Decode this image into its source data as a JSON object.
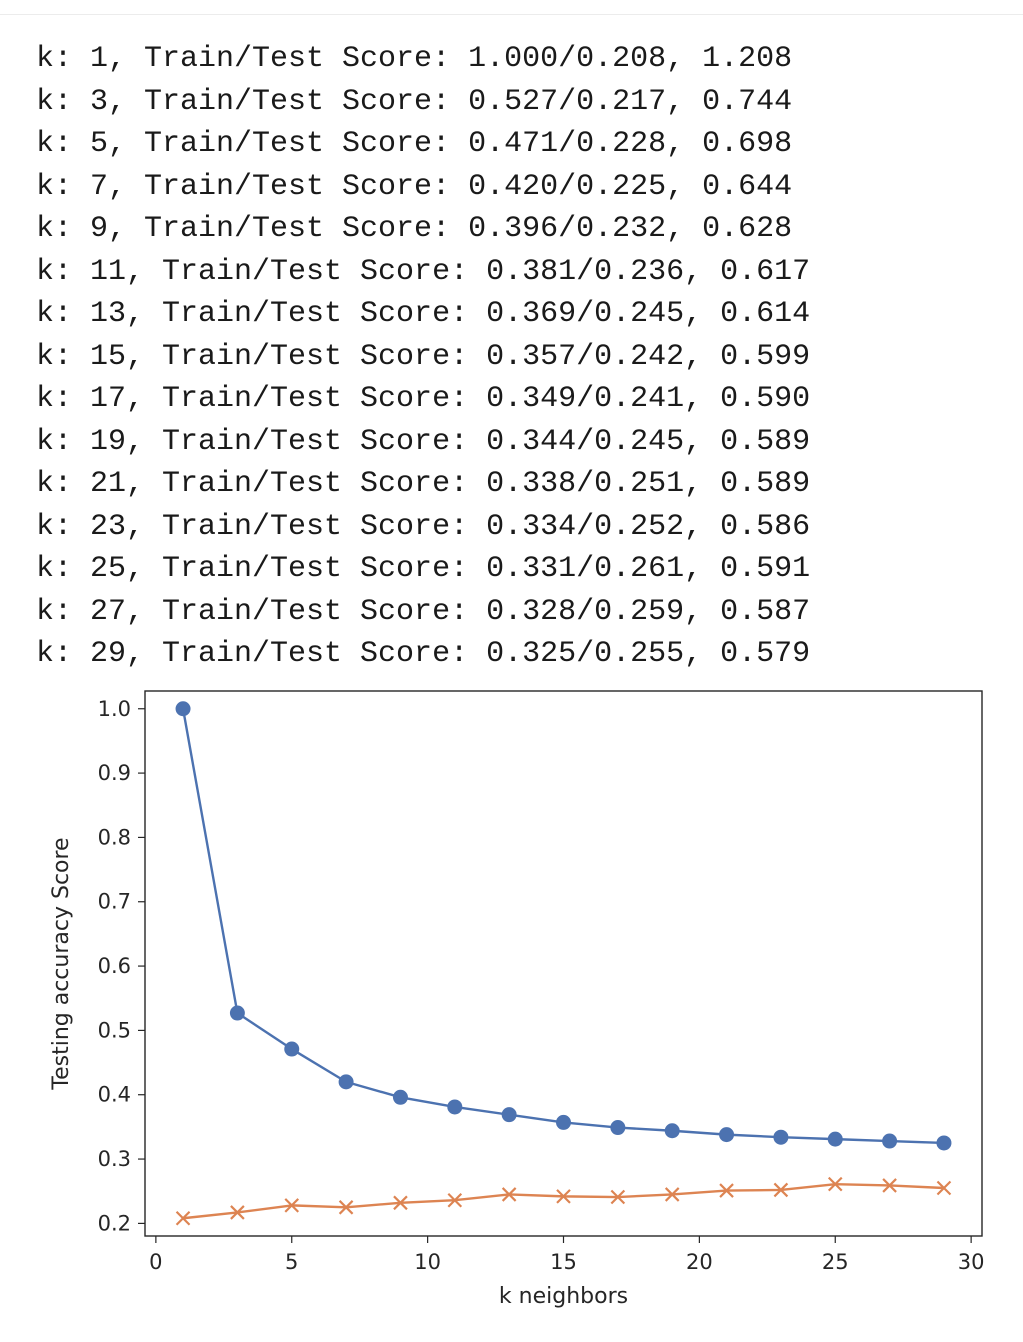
{
  "output_lines": [
    "k: 1, Train/Test Score: 1.000/0.208, 1.208",
    "k: 3, Train/Test Score: 0.527/0.217, 0.744",
    "k: 5, Train/Test Score: 0.471/0.228, 0.698",
    "k: 7, Train/Test Score: 0.420/0.225, 0.644",
    "k: 9, Train/Test Score: 0.396/0.232, 0.628",
    "k: 11, Train/Test Score: 0.381/0.236, 0.617",
    "k: 13, Train/Test Score: 0.369/0.245, 0.614",
    "k: 15, Train/Test Score: 0.357/0.242, 0.599",
    "k: 17, Train/Test Score: 0.349/0.241, 0.590",
    "k: 19, Train/Test Score: 0.344/0.245, 0.589",
    "k: 21, Train/Test Score: 0.338/0.251, 0.589",
    "k: 23, Train/Test Score: 0.334/0.252, 0.586",
    "k: 25, Train/Test Score: 0.331/0.261, 0.591",
    "k: 27, Train/Test Score: 0.328/0.259, 0.587",
    "k: 29, Train/Test Score: 0.325/0.255, 0.579"
  ],
  "chart_data": {
    "type": "line",
    "title": "",
    "xlabel": "k neighbors",
    "ylabel": "Testing accuracy Score",
    "x": [
      1,
      3,
      5,
      7,
      9,
      11,
      13,
      15,
      17,
      19,
      21,
      23,
      25,
      27,
      29
    ],
    "series": [
      {
        "color": "#4c72b0",
        "marker": "circle",
        "values": [
          1.0,
          0.527,
          0.471,
          0.42,
          0.396,
          0.381,
          0.369,
          0.357,
          0.349,
          0.344,
          0.338,
          0.334,
          0.331,
          0.328,
          0.325
        ]
      },
      {
        "color": "#dd8452",
        "marker": "x",
        "values": [
          0.208,
          0.217,
          0.228,
          0.225,
          0.232,
          0.236,
          0.245,
          0.242,
          0.241,
          0.245,
          0.251,
          0.252,
          0.261,
          0.259,
          0.255
        ]
      }
    ],
    "xlim": [
      -0.4,
      30.4
    ],
    "ylim": [
      0.1804,
      1.0276
    ],
    "xticks": [
      "0",
      "5",
      "10",
      "15",
      "20",
      "25",
      "30"
    ],
    "yticks": [
      "0.2",
      "0.3",
      "0.4",
      "0.5",
      "0.6",
      "0.7",
      "0.8",
      "0.9",
      "1.0"
    ],
    "grid": false,
    "legend": "none"
  }
}
